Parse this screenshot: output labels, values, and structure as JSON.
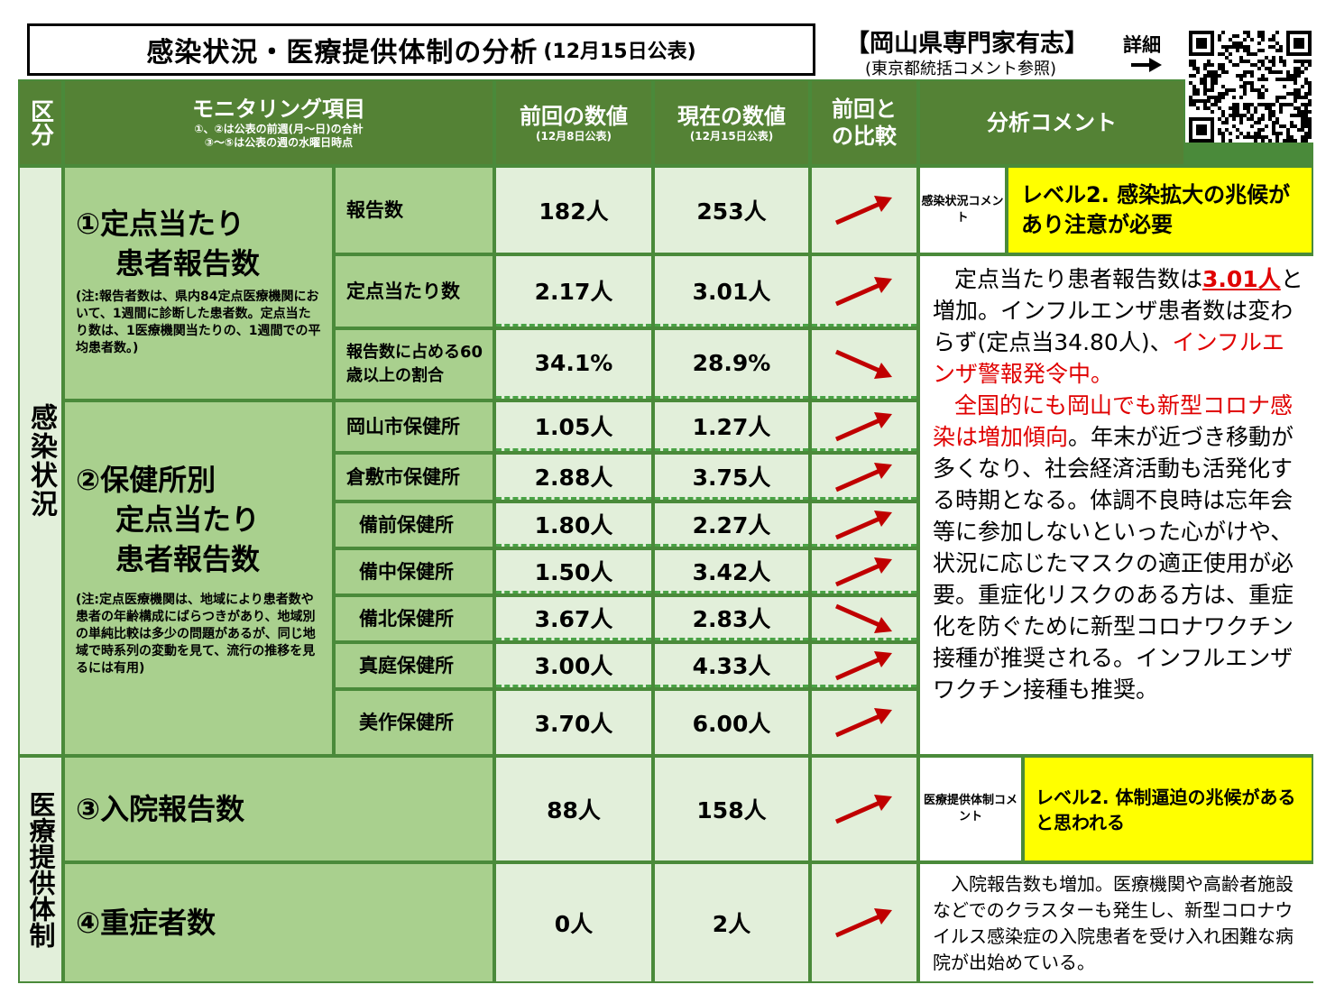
{
  "header": {
    "title": "感染状況・医療提供体制の分析",
    "title_date": "(12月15日公表)",
    "org": "【岡山県専門家有志】",
    "org_note": "(東京都統括コメント参照)",
    "detail_label": "詳細"
  },
  "table_header": {
    "category": "区分",
    "item": "モニタリング項目",
    "item_note1": "①、②は公表の前週(月～日)の合計",
    "item_note2": "③～⑤は公表の週の水曜日時点",
    "prev": "前回の数値",
    "prev_date": "(12月8日公表)",
    "curr": "現在の数値",
    "curr_date": "(12月15日公表)",
    "compare": "前回との比較",
    "analysis": "分析コメント"
  },
  "sections": {
    "infection": "感染状況",
    "medical": "医療提供体制"
  },
  "metric1": {
    "title1": "①定点当たり",
    "title2": "患者報告数",
    "note": "(注:報告者数は、県内84定点医療機関において、1週間に診断した患者数。定点当たり数は、1医療機関当たりの、1週間での平均患者数。)"
  },
  "metric2": {
    "title1": "②保健所別",
    "title2": "定点当たり",
    "title3": "患者報告数",
    "note": "(注:定点医療機関は、地域により患者数や患者の年齢構成にばらつきがあり、地域別の単純比較は多少の問題があるが、同じ地域で時系列の変動を見て、流行の推移を見るには有用)"
  },
  "rows": [
    {
      "label": "報告数",
      "prev": "182人",
      "curr": "253人",
      "trend": "up"
    },
    {
      "label": "定点当たり数",
      "prev": "2.17人",
      "curr": "3.01人",
      "trend": "up"
    },
    {
      "label": "報告数に占める60歳以上の割合",
      "prev": "34.1%",
      "curr": "28.9%",
      "trend": "down"
    },
    {
      "label": "岡山市保健所",
      "prev": "1.05人",
      "curr": "1.27人",
      "trend": "up"
    },
    {
      "label": "倉敷市保健所",
      "prev": "2.88人",
      "curr": "3.75人",
      "trend": "up"
    },
    {
      "label": "備前保健所",
      "prev": "1.80人",
      "curr": "2.27人",
      "trend": "up"
    },
    {
      "label": "備中保健所",
      "prev": "1.50人",
      "curr": "3.42人",
      "trend": "up"
    },
    {
      "label": "備北保健所",
      "prev": "3.67人",
      "curr": "2.83人",
      "trend": "down"
    },
    {
      "label": "真庭保健所",
      "prev": "3.00人",
      "curr": "4.33人",
      "trend": "up"
    },
    {
      "label": "美作保健所",
      "prev": "3.70人",
      "curr": "6.00人",
      "trend": "up"
    },
    {
      "label": "③入院報告数",
      "prev": "88人",
      "curr": "158人",
      "trend": "up"
    },
    {
      "label": "④重症者数",
      "prev": "0人",
      "curr": "2人",
      "trend": "up"
    }
  ],
  "infection_comment": {
    "tag": "感染状況コメント",
    "level": "レベル2. 感染拡大の兆候があり注意が必要",
    "p1_a": "定点当たり患者報告数は",
    "p1_b": "3.01人",
    "p1_c": "と増加。インフルエンザ患者数は変わらず(定点当34.80人)、",
    "p1_d": "インフルエンザ警報発令中。",
    "p2_a": "全国的にも岡山でも新型コロナ感染は増加傾向",
    "p2_b": "。年末が近づき移動が多くなり、社会経済活動も活発化する時期となる。体調不良時は忘年会等に参加しないといった心がけや、状況に応じたマスクの適正使用が必要。重症化リスクのある方は、重症化を防ぐために新型コロナワクチン接種が推奨される。インフルエンザワクチン接種も推奨。"
  },
  "medical_comment": {
    "tag": "医療提供体制コメント",
    "level": "レベル2. 体制逼迫の兆候があると思われる",
    "text": "入院報告数も増加。医療機関や高齢者施設などでのクラスターも発生し、新型コロナウイルス感染症の入院患者を受け入れ困難な病院が出始めている。"
  },
  "colors": {
    "header_green": "#548235",
    "light_green": "#a9d08e",
    "pale_green": "#e2efda",
    "level_yellow": "#ffff00",
    "arrow_red": "#c00000",
    "emphasis_red": "#e00000"
  }
}
